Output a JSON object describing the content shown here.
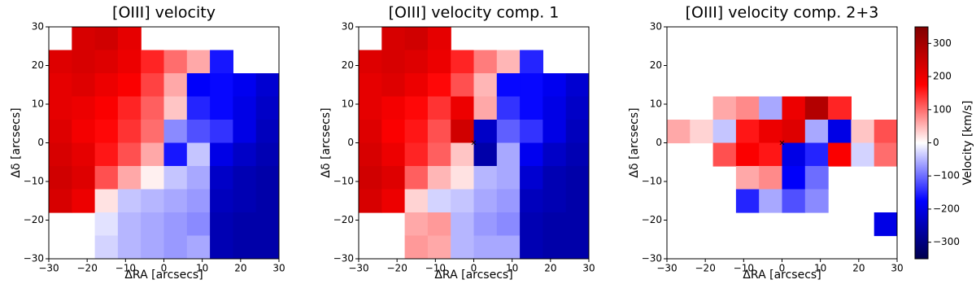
{
  "chart_data": [
    {
      "type": "heatmap",
      "title": "[OIII] velocity",
      "xlabel": "ΔRA [arcsecs]",
      "ylabel": "Δδ [arcsecs]",
      "colormap": "seismic",
      "clim": [
        -350,
        350
      ],
      "xlim": [
        -30,
        30
      ],
      "ylim": [
        -30,
        30
      ],
      "xticks": [
        {
          "value": -30,
          "label": "−30"
        },
        {
          "value": -20,
          "label": "−20"
        },
        {
          "value": -10,
          "label": "−10"
        },
        0,
        10,
        20,
        30
      ],
      "yticks": [
        {
          "value": -30,
          "label": "−30"
        },
        {
          "value": -20,
          "label": "−20"
        },
        {
          "value": -10,
          "label": "−10"
        },
        0,
        10,
        20,
        30
      ],
      "x": [
        -27,
        -21,
        -15,
        -9,
        -3,
        3,
        9,
        15,
        21,
        27
      ],
      "y": [
        27,
        21,
        15,
        9,
        3,
        -3,
        -9,
        -15,
        -21,
        -27
      ],
      "values": [
        [
          null,
          230,
          240,
          210,
          null,
          null,
          null,
          null,
          null,
          null
        ],
        [
          220,
          230,
          220,
          200,
          150,
          100,
          60,
          -160,
          null,
          null
        ],
        [
          210,
          220,
          200,
          180,
          130,
          60,
          -180,
          -170,
          -190,
          -220
        ],
        [
          210,
          200,
          180,
          150,
          110,
          40,
          -150,
          -170,
          -200,
          -230
        ],
        [
          220,
          190,
          170,
          140,
          100,
          -80,
          -120,
          -140,
          -200,
          -240
        ],
        [
          230,
          210,
          160,
          120,
          60,
          -160,
          -40,
          -200,
          -230,
          -250
        ],
        [
          240,
          220,
          120,
          60,
          10,
          -40,
          -60,
          -230,
          -250,
          -260
        ],
        [
          230,
          200,
          20,
          -40,
          -50,
          -60,
          -70,
          -240,
          -250,
          -260
        ],
        [
          null,
          null,
          -20,
          -50,
          -60,
          -70,
          -80,
          -250,
          -260,
          -260
        ],
        [
          null,
          null,
          -30,
          -50,
          -60,
          -70,
          -60,
          -250,
          -260,
          -260
        ]
      ]
    },
    {
      "type": "heatmap",
      "title": "[OIII] velocity comp. 1",
      "xlabel": "ΔRA [arcsecs]",
      "ylabel": "Δδ [arcsecs]",
      "colormap": "seismic",
      "clim": [
        -350,
        350
      ],
      "xlim": [
        -30,
        30
      ],
      "ylim": [
        -30,
        30
      ],
      "xticks": [
        {
          "value": -30,
          "label": "−30"
        },
        {
          "value": -20,
          "label": "−20"
        },
        {
          "value": -10,
          "label": "−10"
        },
        0,
        10,
        20,
        30
      ],
      "yticks": [
        {
          "value": -30,
          "label": "−30"
        },
        {
          "value": -20,
          "label": "−20"
        },
        {
          "value": -10,
          "label": "−10"
        },
        0,
        10,
        20,
        30
      ],
      "x": [
        -27,
        -21,
        -15,
        -9,
        -3,
        3,
        9,
        15,
        21,
        27
      ],
      "y": [
        27,
        21,
        15,
        9,
        3,
        -3,
        -9,
        -15,
        -21,
        -27
      ],
      "values": [
        [
          null,
          230,
          240,
          210,
          null,
          null,
          null,
          null,
          null,
          null
        ],
        [
          220,
          230,
          220,
          200,
          150,
          90,
          50,
          -150,
          null,
          null
        ],
        [
          210,
          220,
          200,
          170,
          120,
          50,
          -170,
          -170,
          -190,
          -220
        ],
        [
          210,
          190,
          170,
          140,
          200,
          60,
          -140,
          -170,
          -200,
          -230
        ],
        [
          220,
          180,
          160,
          120,
          240,
          -230,
          -110,
          -140,
          -200,
          -240
        ],
        [
          230,
          200,
          150,
          110,
          40,
          -260,
          -60,
          -190,
          -230,
          -250
        ],
        [
          240,
          220,
          110,
          50,
          20,
          -50,
          -60,
          -220,
          -250,
          -260
        ],
        [
          230,
          200,
          30,
          -30,
          -40,
          -60,
          -70,
          -240,
          -250,
          -260
        ],
        [
          null,
          null,
          60,
          70,
          -50,
          -70,
          -80,
          -250,
          -260,
          -260
        ],
        [
          null,
          null,
          70,
          60,
          -50,
          -60,
          -60,
          -250,
          -260,
          -260
        ]
      ]
    },
    {
      "type": "heatmap",
      "title": "[OIII] velocity comp. 2+3",
      "xlabel": "ΔRA [arcsecs]",
      "ylabel": "Δδ [arcsecs]",
      "colormap": "seismic",
      "clim": [
        -350,
        350
      ],
      "xlim": [
        -30,
        30
      ],
      "ylim": [
        -30,
        30
      ],
      "xticks": [
        {
          "value": -30,
          "label": "−30"
        },
        {
          "value": -20,
          "label": "−20"
        },
        {
          "value": -10,
          "label": "−10"
        },
        0,
        10,
        20,
        30
      ],
      "yticks": [
        {
          "value": -30,
          "label": "−30"
        },
        {
          "value": -20,
          "label": "−20"
        },
        {
          "value": -10,
          "label": "−10"
        },
        0,
        10,
        20,
        30
      ],
      "x": [
        -27,
        -21,
        -15,
        -9,
        -3,
        3,
        9,
        15,
        21,
        27
      ],
      "y": [
        27,
        21,
        15,
        9,
        3,
        -3,
        -9,
        -15,
        -21,
        -27
      ],
      "values": [
        [
          null,
          null,
          null,
          null,
          null,
          null,
          null,
          null,
          null,
          null
        ],
        [
          null,
          null,
          null,
          null,
          null,
          null,
          null,
          null,
          null,
          null
        ],
        [
          null,
          null,
          null,
          null,
          null,
          null,
          null,
          null,
          null,
          null
        ],
        [
          null,
          null,
          60,
          80,
          -60,
          200,
          280,
          150,
          null,
          null
        ],
        [
          60,
          30,
          -40,
          160,
          200,
          220,
          -60,
          -200,
          40,
          120
        ],
        [
          null,
          null,
          120,
          180,
          160,
          -200,
          -150,
          180,
          -30,
          100
        ],
        [
          null,
          null,
          null,
          60,
          80,
          -180,
          -100,
          null,
          null,
          null
        ],
        [
          null,
          null,
          null,
          -150,
          -60,
          -120,
          -80,
          null,
          null,
          null
        ],
        [
          null,
          null,
          null,
          null,
          null,
          null,
          null,
          null,
          null,
          -200
        ],
        [
          null,
          null,
          null,
          null,
          null,
          null,
          null,
          null,
          null,
          null
        ]
      ],
      "colorbar": {
        "label": "Velocity [km/s]",
        "ticks": [
          {
            "value": -300,
            "label": "−300"
          },
          {
            "value": -200,
            "label": "−200"
          },
          {
            "value": -100,
            "label": "−100"
          },
          0,
          100,
          200,
          300
        ]
      }
    }
  ]
}
